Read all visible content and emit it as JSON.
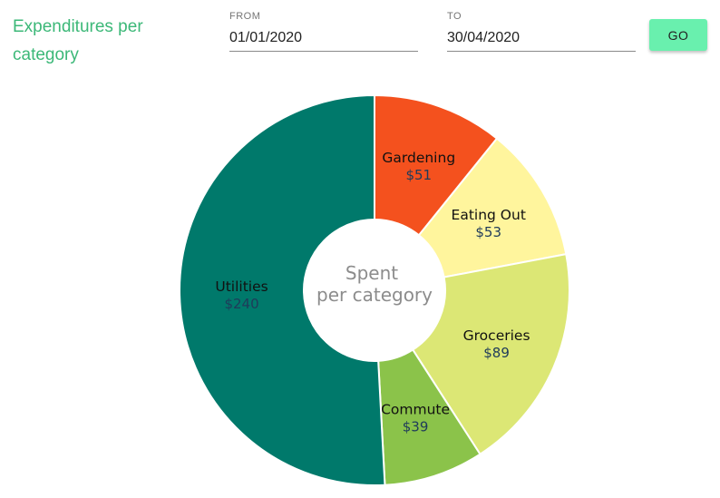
{
  "header": {
    "title": "Expenditures per category",
    "from_label": "FROM",
    "from_value": "01/01/2020",
    "to_label": "TO",
    "to_value": "30/04/2020",
    "go_label": "GO"
  },
  "chart_data": {
    "type": "pie",
    "variant": "donut",
    "center_label": [
      "Spent",
      "per category"
    ],
    "categories": [
      "Gardening",
      "Eating Out",
      "Groceries",
      "Commute",
      "Utilities"
    ],
    "values": [
      51,
      53,
      89,
      39,
      240
    ],
    "value_labels": [
      "$51",
      "$53",
      "$89",
      "$39",
      "$240"
    ],
    "colors": [
      "#f4511e",
      "#fff59d",
      "#dce775",
      "#8bc34a",
      "#00796b"
    ]
  }
}
